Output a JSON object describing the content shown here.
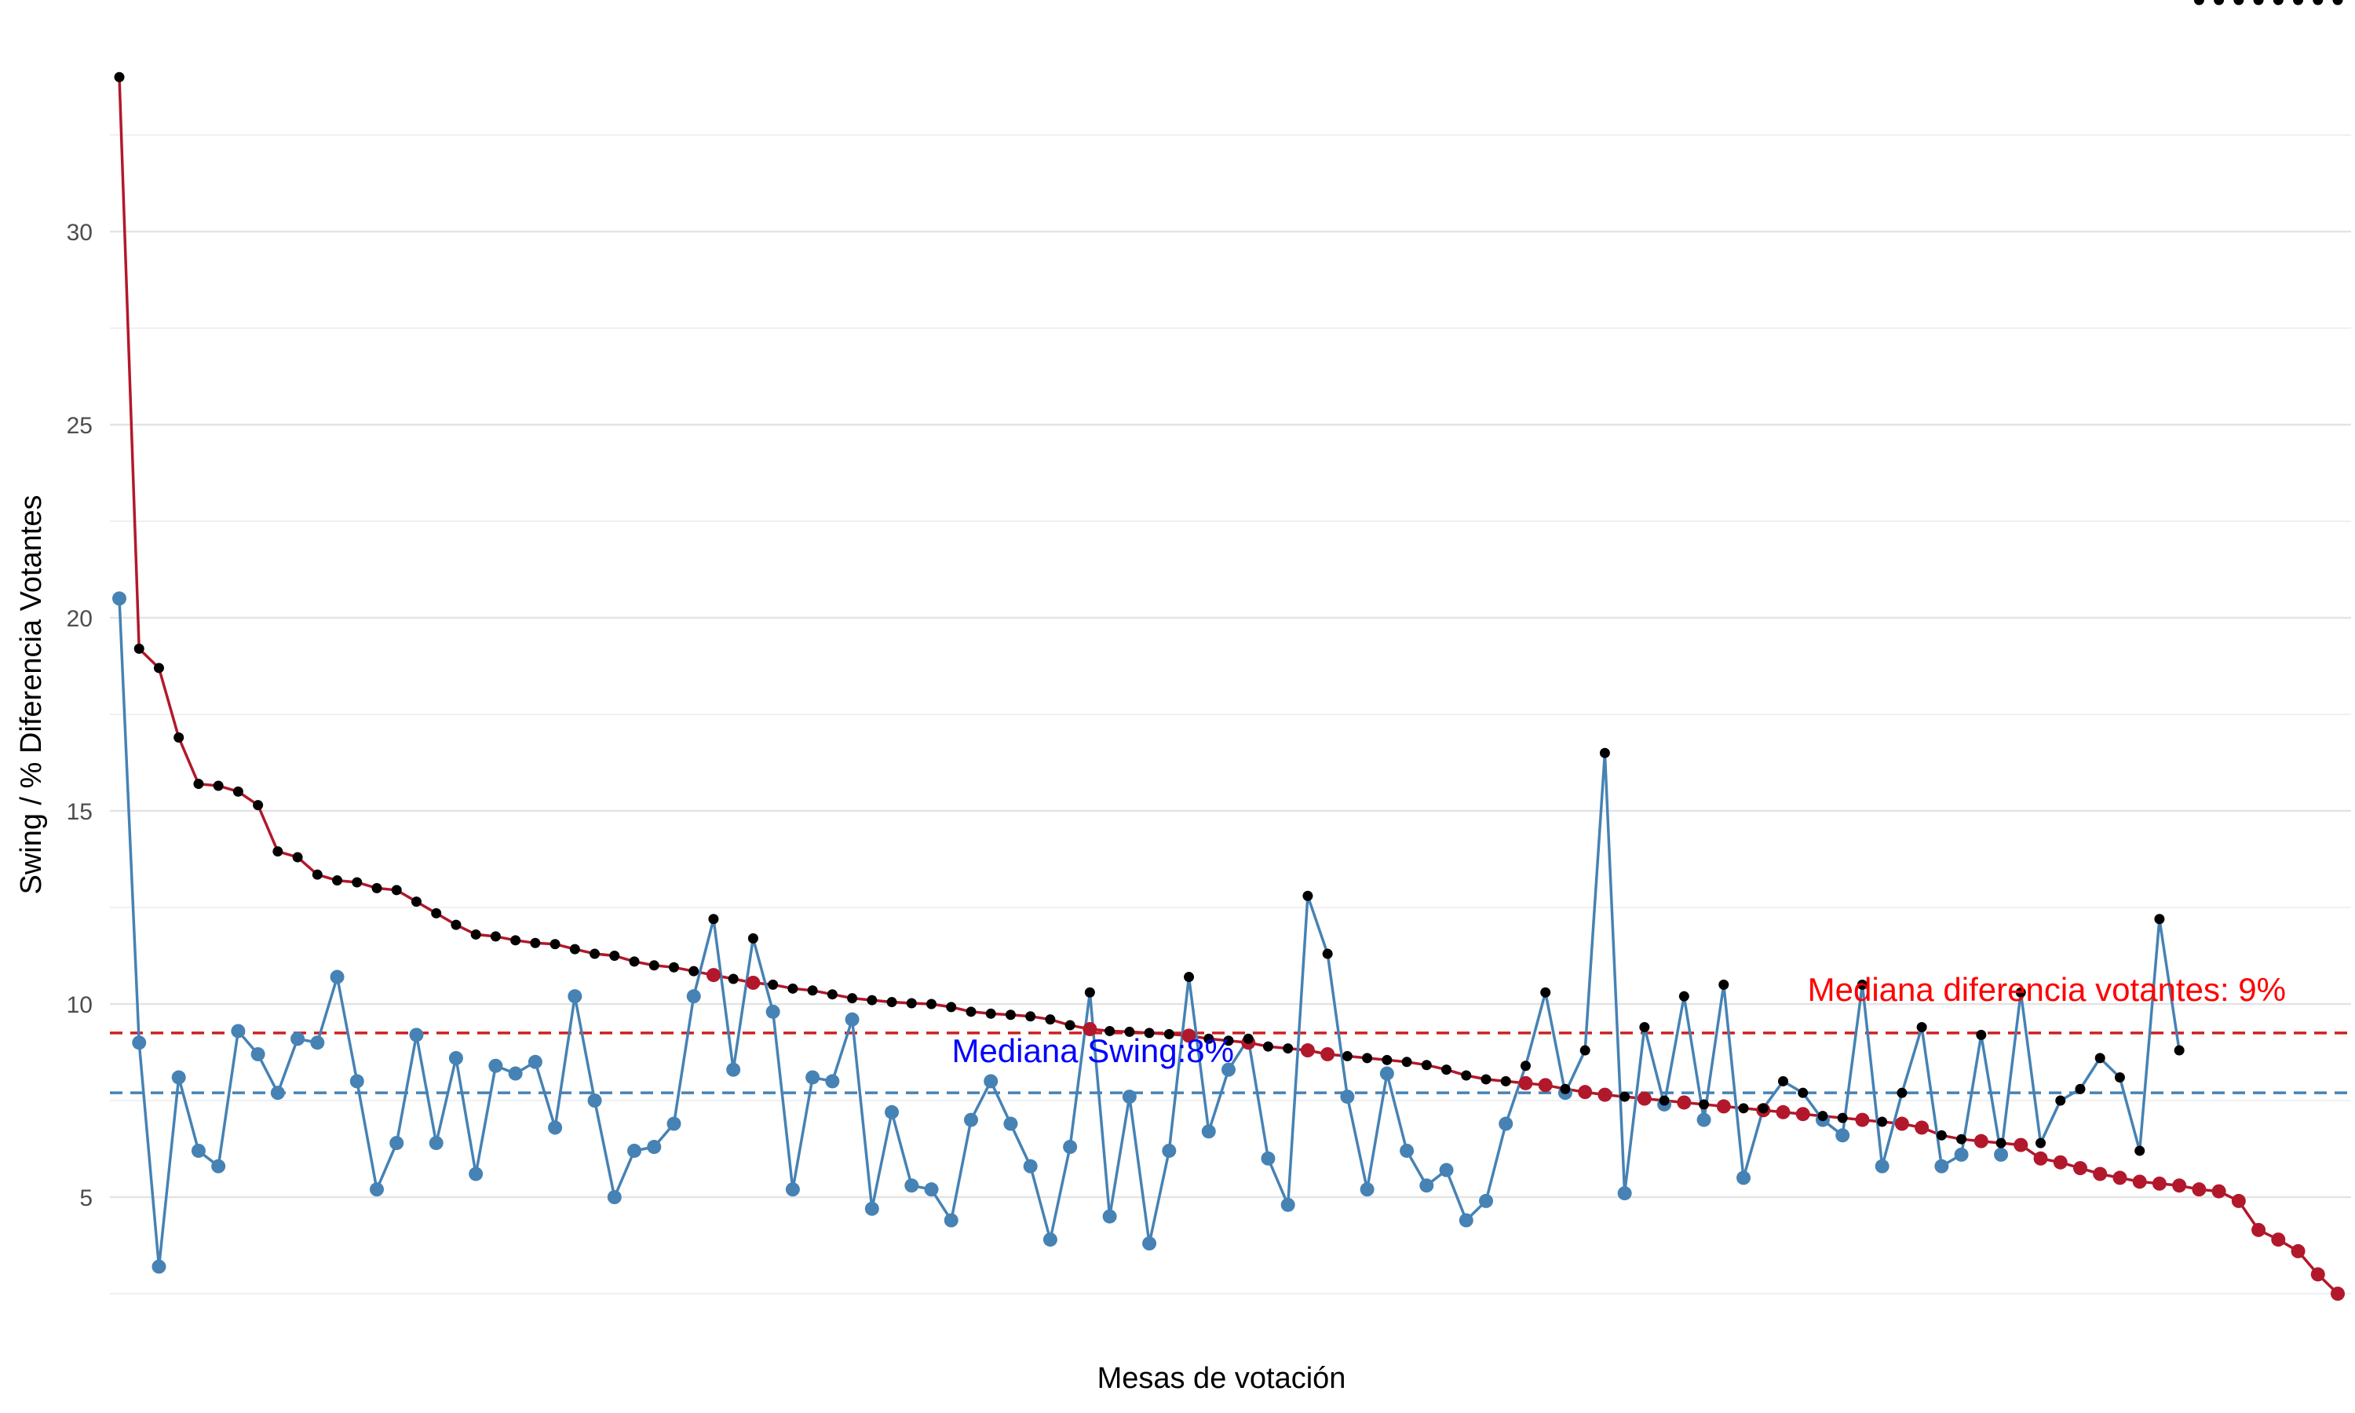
{
  "chart_data": {
    "type": "line",
    "title": "",
    "xlabel": "Mesas de votación",
    "ylabel": "Swing  /  % Diferencia Votantes",
    "ylim": [
      2.0,
      35.0
    ],
    "yticks": [
      "5",
      "10",
      "15",
      "20",
      "25",
      "30"
    ],
    "grid": true,
    "series": [
      {
        "values": [
          34.0,
          19.2,
          18.7,
          16.9,
          15.7,
          15.65,
          15.5,
          15.15,
          13.95,
          13.8,
          13.35,
          13.2,
          13.15,
          13.0,
          12.95,
          12.65,
          12.35,
          12.05,
          11.8,
          11.75,
          11.65,
          11.58,
          11.55,
          11.42,
          11.3,
          11.25,
          11.1,
          11.0,
          10.95,
          10.85,
          10.75,
          10.65,
          10.55,
          10.5,
          10.4,
          10.35,
          10.25,
          10.15,
          10.1,
          10.05,
          10.02,
          10.0,
          9.92,
          9.8,
          9.75,
          9.72,
          9.68,
          9.6,
          9.45,
          9.35,
          9.3,
          9.28,
          9.25,
          9.22,
          9.18,
          9.1,
          9.05,
          9.0,
          8.9,
          8.85,
          8.8,
          8.7,
          8.65,
          8.6,
          8.55,
          8.5,
          8.42,
          8.3,
          8.15,
          8.05,
          8.0,
          7.95,
          7.9,
          7.8,
          7.72,
          7.65,
          7.6,
          7.55,
          7.5,
          7.45,
          7.4,
          7.35,
          7.3,
          7.25,
          7.2,
          7.15,
          7.1,
          7.05,
          7.0,
          6.95,
          6.9,
          6.8,
          6.6,
          6.5,
          6.45,
          6.4,
          6.35,
          6.0,
          5.9,
          5.75,
          5.6,
          5.5,
          5.4,
          5.35,
          5.3,
          5.2,
          5.15,
          4.9,
          4.15,
          3.9,
          3.6,
          3.0,
          2.5
        ],
        "color": "#b2182b"
      },
      {
        "values": [
          20.5,
          9.0,
          3.2,
          8.1,
          6.2,
          5.8,
          9.3,
          8.7,
          7.7,
          9.1,
          9.0,
          10.7,
          8.0,
          5.2,
          6.4,
          9.2,
          6.4,
          8.6,
          5.6,
          8.4,
          8.2,
          8.5,
          6.8,
          10.2,
          7.5,
          5.0,
          6.2,
          6.3,
          6.9,
          10.2,
          12.2,
          8.3,
          11.7,
          9.8,
          5.2,
          8.1,
          8.0,
          9.6,
          4.7,
          7.2,
          5.3,
          5.2,
          4.4,
          7.0,
          8.0,
          6.9,
          5.8,
          3.9,
          6.3,
          10.3,
          4.5,
          7.6,
          3.8,
          6.2,
          10.7,
          6.7,
          8.3,
          9.1,
          6.0,
          4.8,
          12.8,
          11.3,
          7.6,
          5.2,
          8.2,
          6.2,
          5.3,
          5.7,
          4.4,
          4.9,
          6.9,
          8.4,
          10.3,
          7.7,
          8.8,
          16.5,
          5.1,
          9.4,
          7.4,
          10.2,
          7.0,
          10.5,
          5.5,
          7.3,
          8.0,
          7.7,
          7.0,
          6.6,
          10.5,
          5.8,
          7.7,
          9.4,
          5.8,
          6.1,
          9.2,
          6.1,
          10.3,
          6.4,
          7.5,
          7.8,
          8.6,
          8.1,
          6.2,
          12.2,
          8.8
        ],
        "color": "#4682b4"
      }
    ],
    "reference_lines": [
      {
        "name": "Mediana diferencia votantes: 9%",
        "y": 9.25,
        "color": "#cc2020"
      },
      {
        "name": "Mediana Swing:8%",
        "y": 7.7,
        "color": "#4682b4"
      }
    ],
    "annotations": [
      {
        "text": "Mediana diferencia votantes: 9%",
        "color": "#ff0000"
      },
      {
        "text": "Mediana Swing:8%",
        "color": "#0000ff"
      }
    ]
  }
}
